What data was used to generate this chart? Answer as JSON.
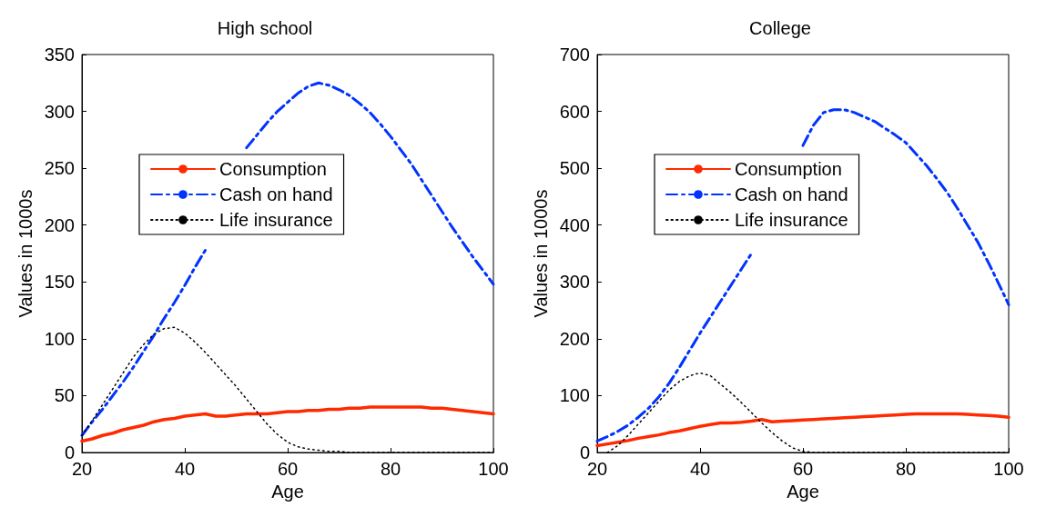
{
  "chart_data": [
    {
      "type": "line",
      "title": "High school",
      "xlabel": "Age",
      "ylabel": "Values in 1000s",
      "x": [
        20,
        22,
        24,
        26,
        28,
        30,
        32,
        34,
        36,
        38,
        40,
        42,
        44,
        46,
        48,
        50,
        52,
        54,
        56,
        58,
        60,
        62,
        64,
        66,
        68,
        70,
        72,
        74,
        76,
        78,
        80,
        82,
        84,
        86,
        88,
        90,
        92,
        94,
        96,
        98,
        100
      ],
      "xlim": [
        20,
        100
      ],
      "xticks": [
        20,
        40,
        60,
        80,
        100
      ],
      "ylim": [
        0,
        350
      ],
      "yticks": [
        0,
        50,
        100,
        150,
        200,
        250,
        300,
        350
      ],
      "grid": false,
      "legend": "center left",
      "series": [
        {
          "name": "Consumption",
          "color": "#ff2a00",
          "line_style": "solid",
          "values": [
            10,
            12,
            15,
            17,
            20,
            22,
            24,
            27,
            29,
            30,
            32,
            33,
            34,
            32,
            32,
            33,
            34,
            34,
            34,
            35,
            36,
            36,
            37,
            37,
            38,
            38,
            39,
            39,
            40,
            40,
            40,
            40,
            40,
            40,
            39,
            39,
            38,
            37,
            36,
            35,
            34
          ]
        },
        {
          "name": "Cash on hand",
          "color": "#0033ff",
          "line_style": "dashed",
          "values": [
            15,
            27,
            38,
            50,
            62,
            75,
            89,
            103,
            118,
            132,
            147,
            163,
            178,
            null,
            null,
            null,
            268,
            279,
            290,
            300,
            308,
            316,
            322,
            325,
            323,
            319,
            314,
            307,
            299,
            289,
            278,
            266,
            254,
            240,
            226,
            212,
            198,
            185,
            172,
            160,
            148
          ]
        },
        {
          "name": "Life insurance",
          "color": "#000000",
          "line_style": "dotted",
          "values": [
            15,
            28,
            42,
            56,
            70,
            84,
            95,
            104,
            109,
            110,
            105,
            97,
            88,
            78,
            68,
            58,
            47,
            36,
            25,
            16,
            9,
            5,
            3,
            2,
            1,
            1,
            0,
            0,
            0,
            0,
            0,
            0,
            0,
            0,
            0,
            0,
            0,
            0,
            0,
            0,
            0
          ]
        }
      ]
    },
    {
      "type": "line",
      "title": "College",
      "xlabel": "Age",
      "ylabel": "Values in 1000s",
      "x": [
        20,
        22,
        24,
        26,
        28,
        30,
        32,
        34,
        36,
        38,
        40,
        42,
        44,
        46,
        48,
        50,
        52,
        54,
        56,
        58,
        60,
        62,
        64,
        66,
        68,
        70,
        72,
        74,
        76,
        78,
        80,
        82,
        84,
        86,
        88,
        90,
        92,
        94,
        96,
        98,
        100
      ],
      "xlim": [
        20,
        100
      ],
      "xticks": [
        20,
        40,
        60,
        80,
        100
      ],
      "ylim": [
        0,
        700
      ],
      "yticks": [
        0,
        100,
        200,
        300,
        400,
        500,
        600,
        700
      ],
      "grid": false,
      "legend": "center left",
      "series": [
        {
          "name": "Consumption",
          "color": "#ff2a00",
          "line_style": "solid",
          "values": [
            12,
            15,
            18,
            21,
            25,
            28,
            31,
            35,
            38,
            42,
            46,
            49,
            52,
            52,
            53,
            55,
            58,
            54,
            55,
            56,
            57,
            58,
            59,
            60,
            61,
            62,
            63,
            64,
            65,
            66,
            67,
            68,
            68,
            68,
            68,
            68,
            67,
            66,
            65,
            64,
            62
          ]
        },
        {
          "name": "Cash on hand",
          "color": "#0033ff",
          "line_style": "dashed",
          "values": [
            20,
            28,
            37,
            48,
            62,
            78,
            98,
            122,
            150,
            180,
            210,
            238,
            266,
            294,
            322,
            350,
            null,
            null,
            null,
            null,
            540,
            575,
            598,
            603,
            603,
            598,
            590,
            582,
            570,
            558,
            545,
            525,
            505,
            482,
            458,
            430,
            400,
            370,
            335,
            298,
            260
          ]
        },
        {
          "name": "Life insurance",
          "color": "#000000",
          "line_style": "dotted",
          "values": [
            null,
            0,
            12,
            30,
            50,
            70,
            90,
            110,
            125,
            135,
            140,
            135,
            120,
            105,
            88,
            70,
            52,
            35,
            20,
            8,
            2,
            0,
            0,
            0,
            0,
            0,
            0,
            0,
            0,
            0,
            0,
            0,
            0,
            0,
            0,
            0,
            0,
            0,
            0,
            0,
            0
          ]
        }
      ]
    }
  ]
}
